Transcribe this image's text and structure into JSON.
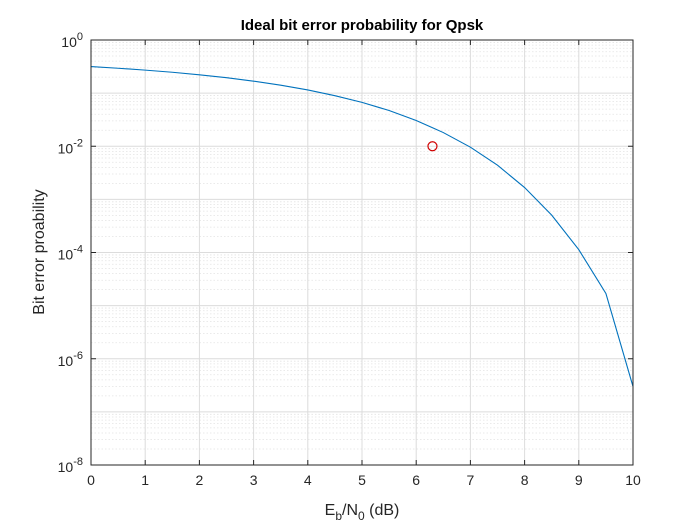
{
  "chart_data": {
    "type": "line",
    "title": "Ideal bit error probability for Qpsk",
    "xlabel": {
      "base": "E",
      "sub1": "b",
      "mid": "/N",
      "sub2": "0",
      "tail": " (dB)"
    },
    "ylabel": "Bit error proability",
    "xlim": [
      0,
      10
    ],
    "ylim": [
      1e-08,
      1
    ],
    "yscale": "log",
    "grid": "on (major and minor)",
    "x_ticks": [
      "0",
      "1",
      "2",
      "3",
      "4",
      "5",
      "6",
      "7",
      "8",
      "9",
      "10"
    ],
    "y_ticks": [
      {
        "base": "10",
        "exp": "0",
        "value": 1
      },
      {
        "base": "10",
        "exp": "-2",
        "value": 0.01
      },
      {
        "base": "10",
        "exp": "-4",
        "value": 0.0001
      },
      {
        "base": "10",
        "exp": "-6",
        "value": 1e-06
      },
      {
        "base": "10",
        "exp": "-8",
        "value": 1e-08
      }
    ],
    "series": [
      {
        "color": "#0072bd",
        "x": [
          0,
          0.5,
          1,
          1.5,
          2,
          2.5,
          3,
          3.5,
          4,
          4.5,
          5,
          5.5,
          6,
          6.5,
          7,
          7.5,
          8,
          8.5,
          9,
          9.5,
          10
        ],
        "values": [
          0.316,
          0.294,
          0.271,
          0.247,
          0.221,
          0.195,
          0.168,
          0.141,
          0.115,
          0.0895,
          0.0669,
          0.0471,
          0.0306,
          0.0181,
          0.0096,
          0.0044,
          0.00167,
          0.000505,
          0.000113,
          1.69e-05,
          3e-07
        ]
      }
    ],
    "marker": {
      "x": 6.3,
      "y": 0.01,
      "shape": "circle",
      "color": "#d00000"
    }
  }
}
